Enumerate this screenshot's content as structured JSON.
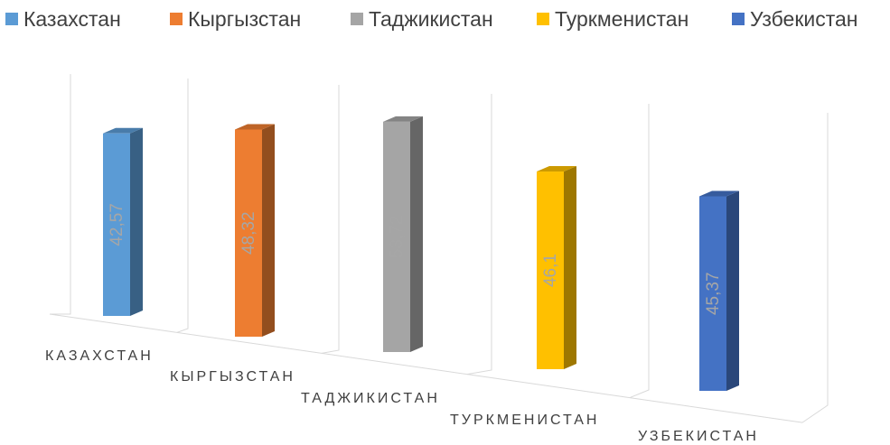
{
  "chart_data": {
    "type": "bar",
    "subtype": "3d-column",
    "categories": [
      "КАЗАХСТАН",
      "КЫРГЫЗСТАН",
      "ТАДЖИКИСТАН",
      "ТУРКМЕНИСТАН",
      "УЗБЕКИСТАН"
    ],
    "series": [
      {
        "name": "Казахстан",
        "values": [
          42.57,
          null,
          null,
          null,
          null
        ],
        "label": "42,57",
        "color": "#5b9bd5"
      },
      {
        "name": "Кыргызстан",
        "values": [
          null,
          48.32,
          null,
          null,
          null
        ],
        "label": "48,32",
        "color": "#ed7d31"
      },
      {
        "name": "Таджикистан",
        "values": [
          null,
          null,
          53.72,
          null,
          null
        ],
        "label": "53,72",
        "color": "#a5a5a5"
      },
      {
        "name": "Туркменистан",
        "values": [
          null,
          null,
          null,
          46.1,
          null
        ],
        "label": "46,1",
        "color": "#ffc000"
      },
      {
        "name": "Узбекистан",
        "values": [
          null,
          null,
          null,
          null,
          45.37
        ],
        "label": "45,37",
        "color": "#4472c4"
      }
    ],
    "title": "",
    "xlabel": "",
    "ylabel": "",
    "legend_position": "top",
    "grid": true,
    "data_labels": "inside, rotated vertical"
  }
}
